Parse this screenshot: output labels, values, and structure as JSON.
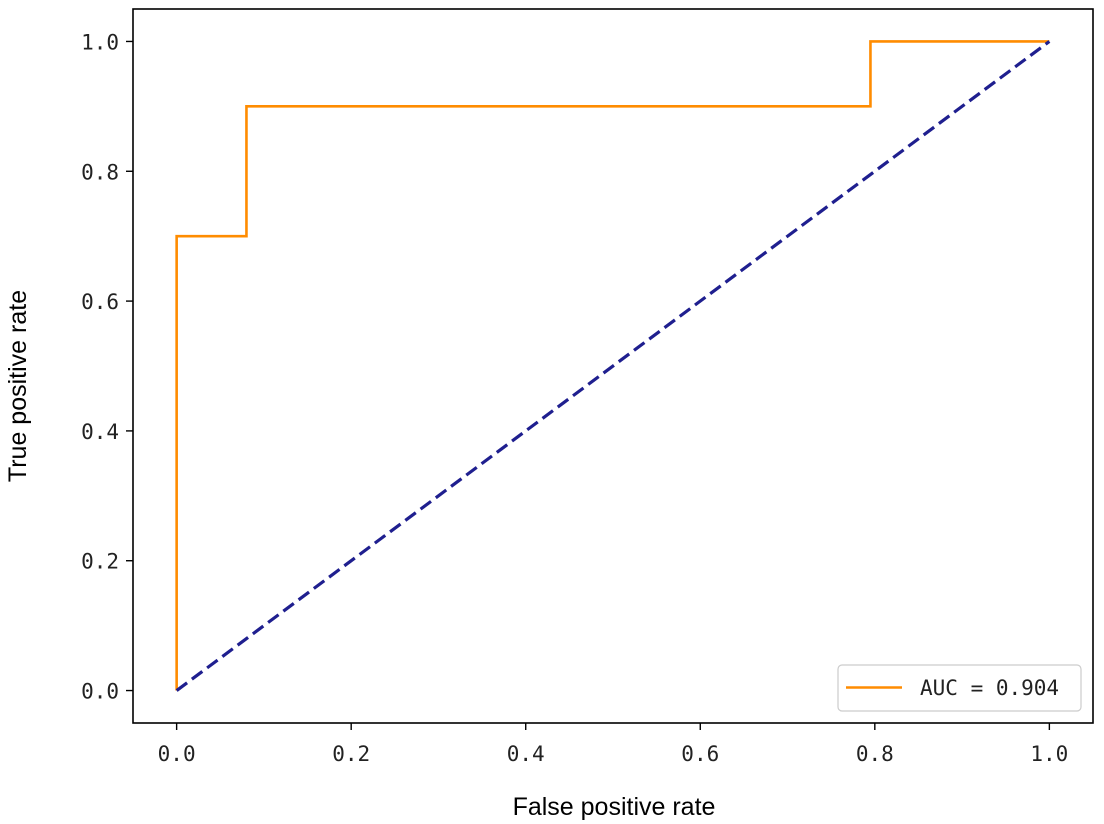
{
  "chart_data": {
    "type": "line",
    "xlabel": "False positive rate",
    "ylabel": "True positive rate",
    "xlim": [
      -0.05,
      1.05
    ],
    "ylim": [
      -0.05,
      1.05
    ],
    "x_ticks": [
      0.0,
      0.2,
      0.4,
      0.6,
      0.8,
      1.0
    ],
    "x_tick_labels": [
      "0.0",
      "0.2",
      "0.4",
      "0.6",
      "0.8",
      "1.0"
    ],
    "y_ticks": [
      0.0,
      0.2,
      0.4,
      0.6,
      0.8,
      1.0
    ],
    "y_tick_labels": [
      "0.0",
      "0.2",
      "0.4",
      "0.6",
      "0.8",
      "1.0"
    ],
    "grid": false,
    "legend_position": "lower-right",
    "series": [
      {
        "name": "AUC = 0.904",
        "color": "#ff8c00",
        "style": "solid",
        "x": [
          0.0,
          0.0,
          0.08,
          0.08,
          0.795,
          0.795,
          1.0
        ],
        "y": [
          0.0,
          0.7,
          0.7,
          0.9,
          0.9,
          1.0,
          1.0
        ]
      },
      {
        "color": "#1f1f8f",
        "style": "dashed",
        "x": [
          0.0,
          1.0
        ],
        "y": [
          0.0,
          1.0
        ]
      }
    ]
  }
}
